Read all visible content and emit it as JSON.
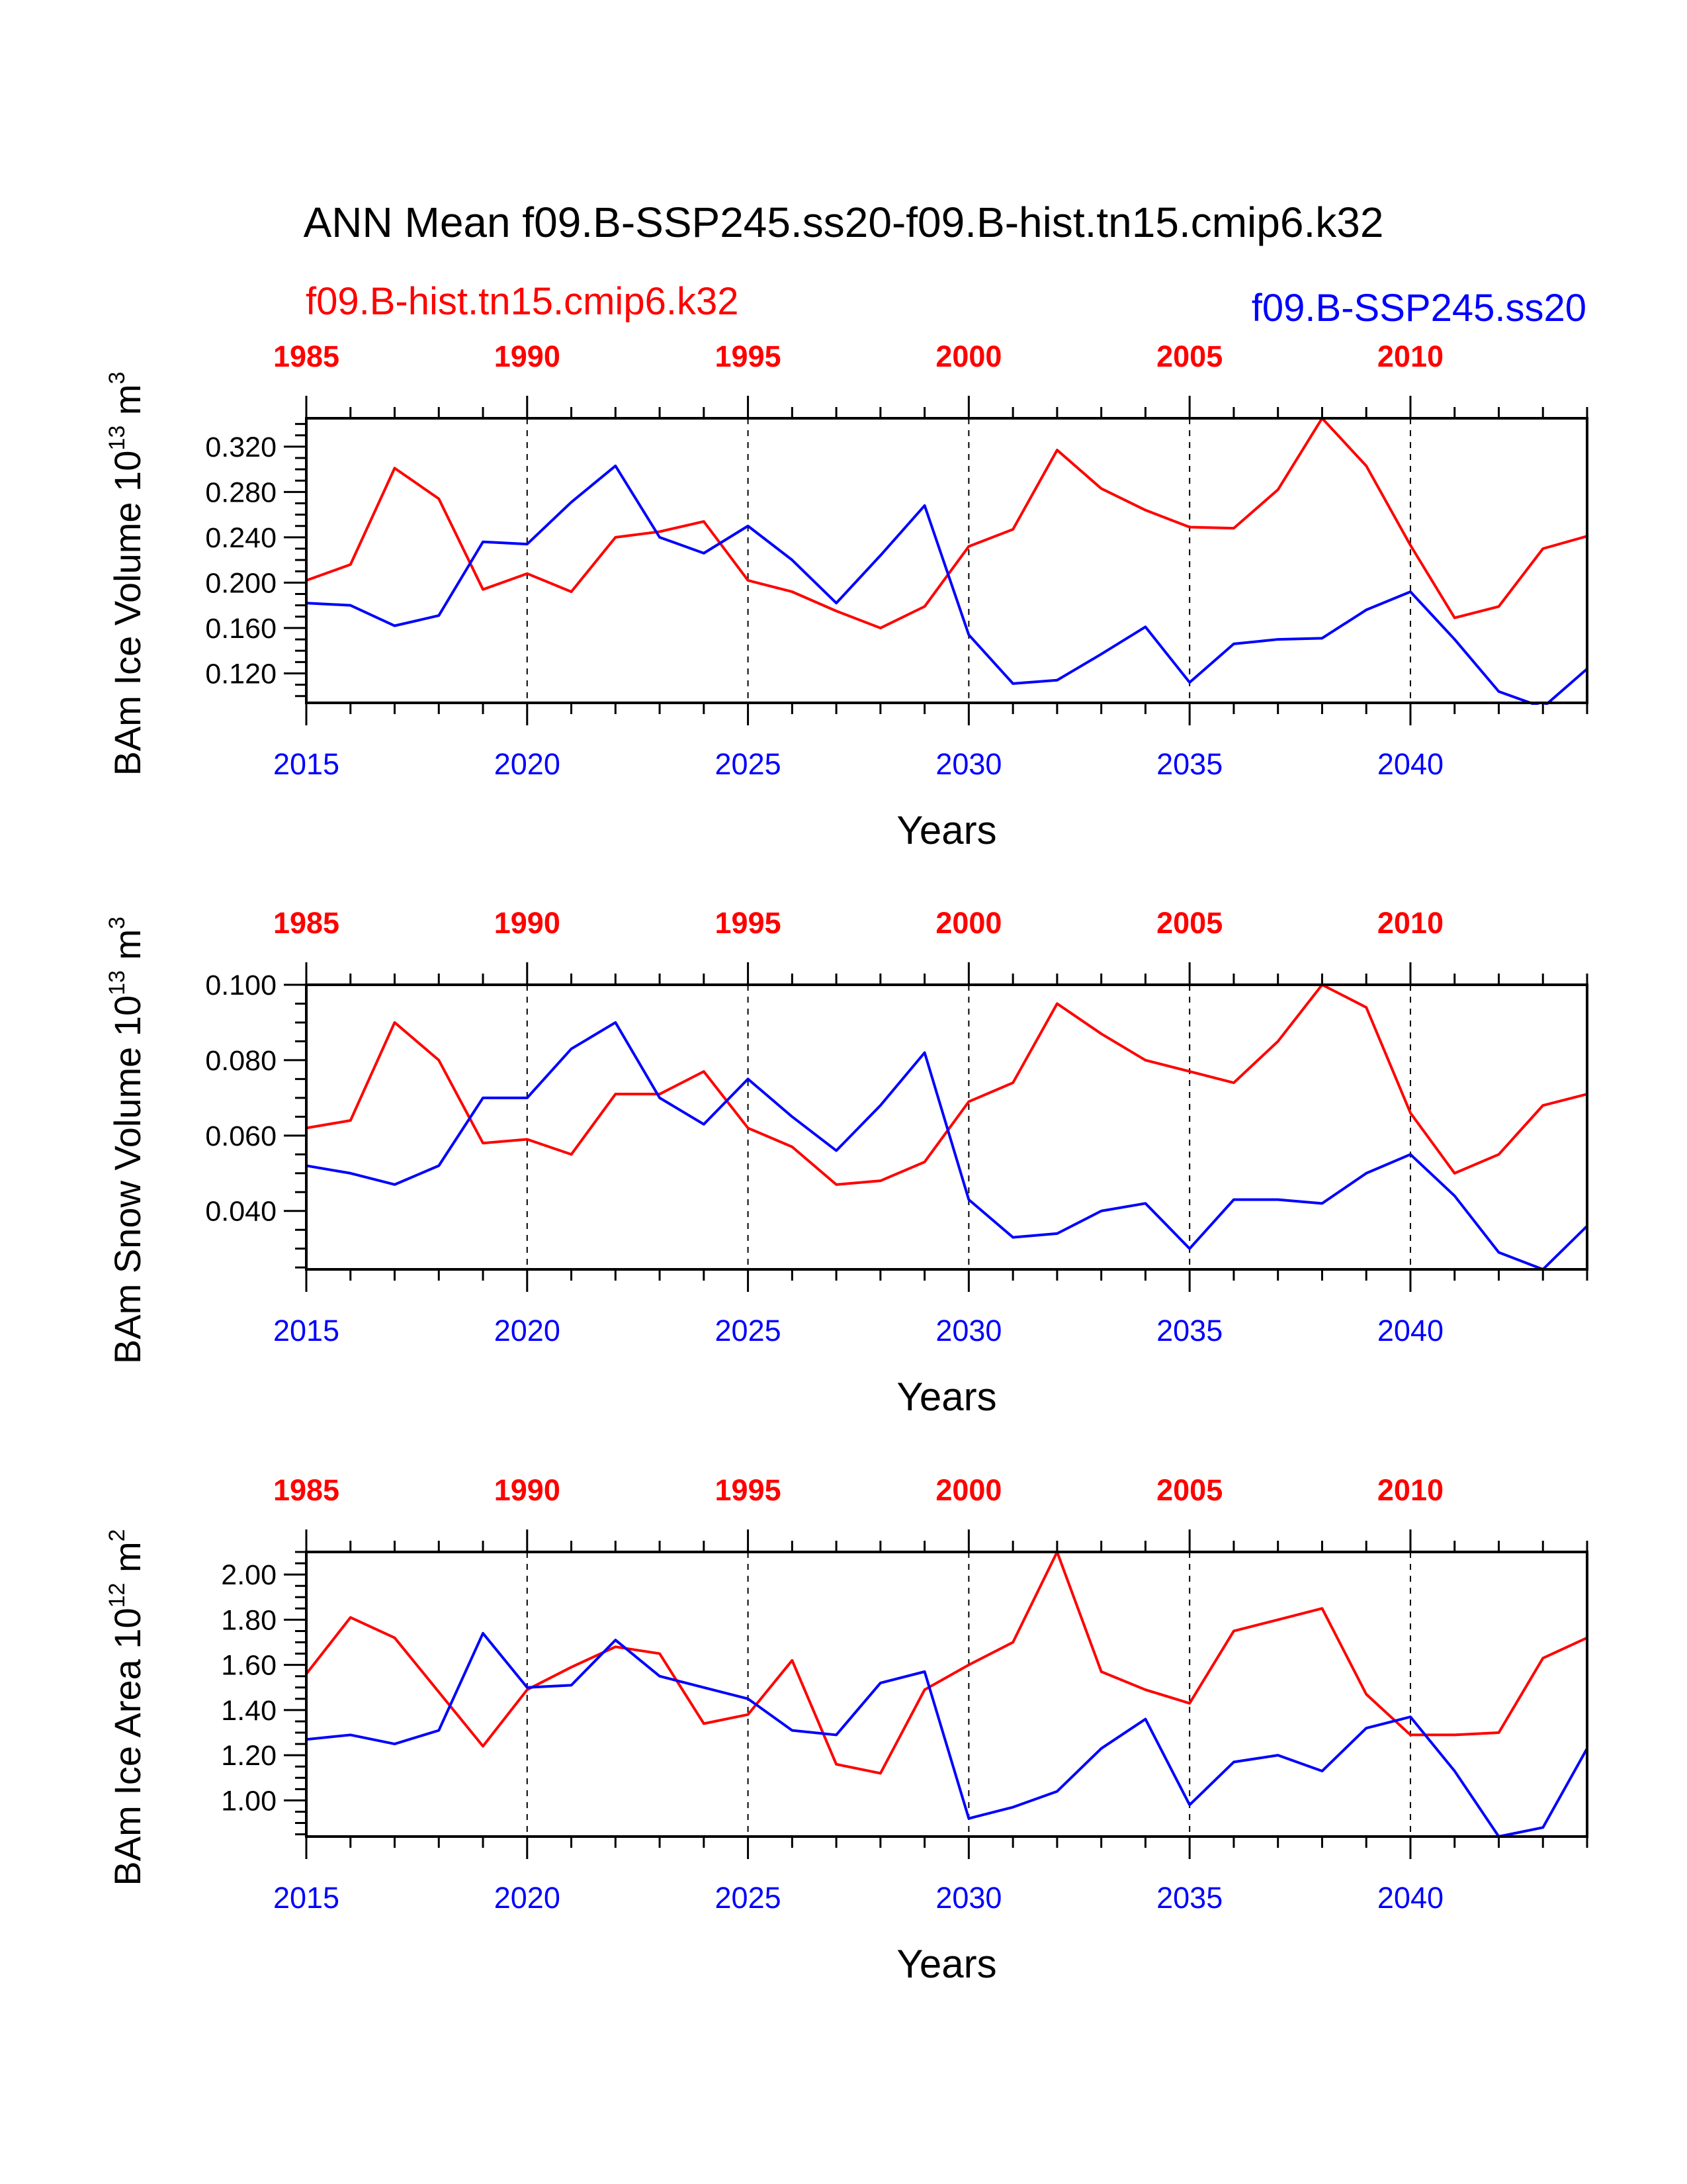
{
  "title": "ANN Mean f09.B-SSP245.ss20-f09.B-hist.tn15.cmip6.k32",
  "legend": {
    "left": {
      "label": "f09.B-hist.tn15.cmip6.k32",
      "color": "#ff0000"
    },
    "right": {
      "label": "f09.B-SSP245.ss20",
      "color": "#0000ff"
    }
  },
  "colors": {
    "hist": "#ff0000",
    "ssp": "#0000ff",
    "axis": "#000000"
  },
  "chart_data": [
    {
      "type": "line",
      "ylabel_prefix": "BAm Ice Volume 10",
      "ylabel_exp": "13",
      "ylabel_unit": " m",
      "ylabel_unit_exp": "3",
      "xlabel": "Years",
      "ylim": [
        0.094,
        0.345
      ],
      "ytick_values": [
        0.12,
        0.16,
        0.2,
        0.24,
        0.28,
        0.32
      ],
      "yticks": [
        "0.120",
        "0.160",
        "0.200",
        "0.240",
        "0.280",
        "0.320"
      ],
      "bottom_xticks": [
        "2015",
        "2020",
        "2025",
        "2030",
        "2035",
        "2040"
      ],
      "top_xticks": [
        "1985",
        "1990",
        "1995",
        "2000",
        "2005",
        "2010"
      ],
      "grid": "dashed vertical lines at major ticks",
      "series": [
        {
          "name": "f09.B-hist.tn15.cmip6.k32",
          "color": "#ff0000",
          "x": [
            1985,
            1986,
            1987,
            1988,
            1989,
            1990,
            1991,
            1992,
            1993,
            1994,
            1995,
            1996,
            1997,
            1998,
            1999,
            2000,
            2001,
            2002,
            2003,
            2004,
            2005,
            2006,
            2007,
            2008,
            2009,
            2010,
            2011,
            2012,
            2013,
            2014
          ],
          "values": [
            0.202,
            0.216,
            0.301,
            0.274,
            0.194,
            0.208,
            0.192,
            0.24,
            0.245,
            0.254,
            0.202,
            0.192,
            0.175,
            0.16,
            0.179,
            0.232,
            0.247,
            0.317,
            0.283,
            0.264,
            0.249,
            0.248,
            0.282,
            0.345,
            0.303,
            0.233,
            0.169,
            0.179,
            0.23,
            0.241
          ]
        },
        {
          "name": "f09.B-SSP245.ss20",
          "color": "#0000ff",
          "x": [
            2015,
            2016,
            2017,
            2018,
            2019,
            2020,
            2021,
            2022,
            2023,
            2024,
            2025,
            2026,
            2027,
            2028,
            2029,
            2030,
            2031,
            2032,
            2033,
            2034,
            2035,
            2036,
            2037,
            2038,
            2039,
            2040,
            2041,
            2042,
            2043,
            2044
          ],
          "values": [
            0.182,
            0.18,
            0.162,
            0.171,
            0.236,
            0.234,
            0.271,
            0.303,
            0.24,
            0.226,
            0.25,
            0.22,
            0.182,
            0.224,
            0.268,
            0.154,
            0.111,
            0.114,
            0.137,
            0.161,
            0.112,
            0.146,
            0.15,
            0.151,
            0.176,
            0.192,
            0.15,
            0.104,
            0.09,
            0.124
          ]
        }
      ]
    },
    {
      "type": "line",
      "ylabel_prefix": "BAm Snow Volume 10",
      "ylabel_exp": "13",
      "ylabel_unit": " m",
      "ylabel_unit_exp": "3",
      "xlabel": "Years",
      "ylim": [
        0.0245,
        0.1
      ],
      "ytick_values": [
        0.04,
        0.06,
        0.08,
        0.1
      ],
      "yticks": [
        "0.040",
        "0.060",
        "0.080",
        "0.100"
      ],
      "bottom_xticks": [
        "2015",
        "2020",
        "2025",
        "2030",
        "2035",
        "2040"
      ],
      "top_xticks": [
        "1985",
        "1990",
        "1995",
        "2000",
        "2005",
        "2010"
      ],
      "grid": "dashed vertical lines at major ticks",
      "series": [
        {
          "name": "f09.B-hist.tn15.cmip6.k32",
          "color": "#ff0000",
          "x": [
            1985,
            1986,
            1987,
            1988,
            1989,
            1990,
            1991,
            1992,
            1993,
            1994,
            1995,
            1996,
            1997,
            1998,
            1999,
            2000,
            2001,
            2002,
            2003,
            2004,
            2005,
            2006,
            2007,
            2008,
            2009,
            2010,
            2011,
            2012,
            2013,
            2014
          ],
          "values": [
            0.062,
            0.064,
            0.09,
            0.08,
            0.058,
            0.059,
            0.055,
            0.071,
            0.071,
            0.077,
            0.062,
            0.057,
            0.047,
            0.048,
            0.053,
            0.069,
            0.074,
            0.095,
            0.087,
            0.08,
            0.077,
            0.074,
            0.085,
            0.1,
            0.094,
            0.066,
            0.05,
            0.055,
            0.068,
            0.071
          ]
        },
        {
          "name": "f09.B-SSP245.ss20",
          "color": "#0000ff",
          "x": [
            2015,
            2016,
            2017,
            2018,
            2019,
            2020,
            2021,
            2022,
            2023,
            2024,
            2025,
            2026,
            2027,
            2028,
            2029,
            2030,
            2031,
            2032,
            2033,
            2034,
            2035,
            2036,
            2037,
            2038,
            2039,
            2040,
            2041,
            2042,
            2043,
            2044
          ],
          "values": [
            0.052,
            0.05,
            0.047,
            0.052,
            0.07,
            0.07,
            0.083,
            0.09,
            0.07,
            0.063,
            0.075,
            0.065,
            0.056,
            0.068,
            0.082,
            0.043,
            0.033,
            0.034,
            0.04,
            0.042,
            0.03,
            0.043,
            0.043,
            0.042,
            0.05,
            0.055,
            0.044,
            0.029,
            0.0245,
            0.036
          ]
        }
      ]
    },
    {
      "type": "line",
      "ylabel_prefix": "BAm Ice Area 10",
      "ylabel_exp": "12",
      "ylabel_unit": " m",
      "ylabel_unit_exp": "2",
      "xlabel": "Years",
      "ylim": [
        0.84,
        2.1
      ],
      "ytick_values": [
        1.0,
        1.2,
        1.4,
        1.6,
        1.8,
        2.0
      ],
      "yticks": [
        "1.00",
        "1.20",
        "1.40",
        "1.60",
        "1.80",
        "2.00"
      ],
      "bottom_xticks": [
        "2015",
        "2020",
        "2025",
        "2030",
        "2035",
        "2040"
      ],
      "top_xticks": [
        "1985",
        "1990",
        "1995",
        "2000",
        "2005",
        "2010"
      ],
      "grid": "dashed vertical lines at major ticks",
      "series": [
        {
          "name": "f09.B-hist.tn15.cmip6.k32",
          "color": "#ff0000",
          "x": [
            1985,
            1986,
            1987,
            1988,
            1989,
            1990,
            1991,
            1992,
            1993,
            1994,
            1995,
            1996,
            1997,
            1998,
            1999,
            2000,
            2001,
            2002,
            2003,
            2004,
            2005,
            2006,
            2007,
            2008,
            2009,
            2010,
            2011,
            2012,
            2013,
            2014
          ],
          "values": [
            1.56,
            1.81,
            1.72,
            1.48,
            1.24,
            1.49,
            1.59,
            1.68,
            1.65,
            1.34,
            1.38,
            1.62,
            1.16,
            1.12,
            1.49,
            1.6,
            1.7,
            2.1,
            1.57,
            1.49,
            1.43,
            1.75,
            1.8,
            1.85,
            1.47,
            1.29,
            1.29,
            1.3,
            1.63,
            1.72
          ]
        },
        {
          "name": "f09.B-SSP245.ss20",
          "color": "#0000ff",
          "x": [
            2015,
            2016,
            2017,
            2018,
            2019,
            2020,
            2021,
            2022,
            2023,
            2024,
            2025,
            2026,
            2027,
            2028,
            2029,
            2030,
            2031,
            2032,
            2033,
            2034,
            2035,
            2036,
            2037,
            2038,
            2039,
            2040,
            2041,
            2042,
            2043,
            2044
          ],
          "values": [
            1.27,
            1.29,
            1.25,
            1.31,
            1.74,
            1.5,
            1.51,
            1.71,
            1.55,
            1.5,
            1.45,
            1.31,
            1.29,
            1.52,
            1.57,
            0.92,
            0.97,
            1.04,
            1.23,
            1.36,
            0.98,
            1.17,
            1.2,
            1.13,
            1.32,
            1.37,
            1.13,
            0.84,
            0.88,
            1.23
          ]
        }
      ]
    }
  ]
}
